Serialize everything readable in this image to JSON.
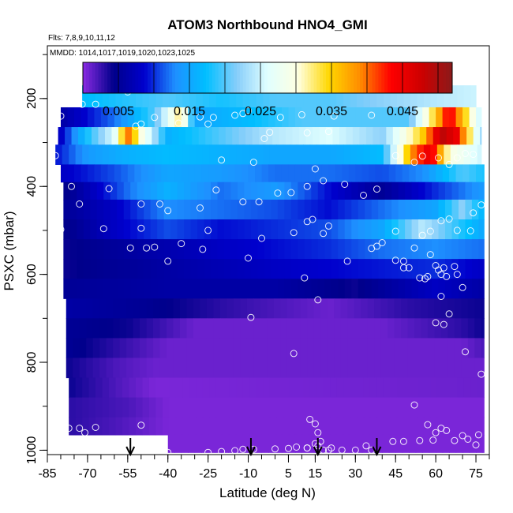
{
  "chart_data": {
    "type": "heatmap",
    "title": "ATOM3 Northbound HNO4_GMI",
    "subtitle_flights": "Flts: 7,8,9,10,11,12",
    "subtitle_dates": "MMDD: 1014,1017,1019,1020,1023,1025",
    "xlabel": "Latitude (deg N)",
    "ylabel": "PSXC (mbar)",
    "xlim": [
      -85,
      80
    ],
    "ylim": [
      1010,
      80
    ],
    "x_ticks": [
      -85,
      -70,
      -55,
      -40,
      -25,
      -10,
      5,
      15,
      30,
      45,
      60,
      75
    ],
    "y_ticks": [
      200,
      400,
      600,
      800,
      1000
    ],
    "colorbar": {
      "range": [
        0.0,
        0.052
      ],
      "tick_values": [
        0.005,
        0.015,
        0.025,
        0.035,
        0.045
      ],
      "tick_labels": [
        "0.005",
        "0.015",
        "0.025",
        "0.035",
        "0.045"
      ],
      "colors": [
        "#8a2be2",
        "#00008b",
        "#0000cd",
        "#1e90ff",
        "#00bfff",
        "#87cefa",
        "#e0ffff",
        "#ffffe0",
        "#ffd700",
        "#ff8c00",
        "#ff0000",
        "#cd0000",
        "#8b1a1a"
      ]
    },
    "flight_markers_latitude": [
      -54,
      -9,
      16,
      38
    ],
    "pressure_levels": [
      {
        "p_top": 170,
        "p_bot": 220,
        "lat_min": -72,
        "lat_max": 75,
        "profile": [
          [
            -72,
            0.017
          ],
          [
            -40,
            0.02
          ],
          [
            -20,
            0.018
          ],
          [
            0,
            0.02
          ],
          [
            20,
            0.02
          ],
          [
            40,
            0.022
          ],
          [
            60,
            0.024
          ],
          [
            75,
            0.025
          ]
        ]
      },
      {
        "p_top": 220,
        "p_bot": 265,
        "lat_min": -80,
        "lat_max": 77,
        "profile": [
          [
            -80,
            0.006
          ],
          [
            -60,
            0.012
          ],
          [
            -45,
            0.02
          ],
          [
            -35,
            0.033
          ],
          [
            -30,
            0.015
          ],
          [
            -10,
            0.017
          ],
          [
            10,
            0.02
          ],
          [
            30,
            0.02
          ],
          [
            50,
            0.02
          ],
          [
            60,
            0.035
          ],
          [
            65,
            0.045
          ],
          [
            77,
            0.024
          ]
        ]
      },
      {
        "p_top": 265,
        "p_bot": 305,
        "lat_min": -81,
        "lat_max": 77,
        "profile": [
          [
            -81,
            0.007
          ],
          [
            -70,
            0.018
          ],
          [
            -60,
            0.026
          ],
          [
            -55,
            0.04
          ],
          [
            -50,
            0.03
          ],
          [
            -40,
            0.016
          ],
          [
            -20,
            0.02
          ],
          [
            0,
            0.024
          ],
          [
            20,
            0.026
          ],
          [
            40,
            0.022
          ],
          [
            55,
            0.035
          ],
          [
            62,
            0.049
          ],
          [
            68,
            0.045
          ],
          [
            77,
            0.022
          ]
        ]
      },
      {
        "p_top": 305,
        "p_bot": 350,
        "lat_min": -82,
        "lat_max": 77,
        "profile": [
          [
            -82,
            0.009
          ],
          [
            -70,
            0.014
          ],
          [
            -55,
            0.016
          ],
          [
            -40,
            0.017
          ],
          [
            -20,
            0.016
          ],
          [
            0,
            0.015
          ],
          [
            20,
            0.015
          ],
          [
            40,
            0.017
          ],
          [
            52,
            0.04
          ],
          [
            58,
            0.046
          ],
          [
            65,
            0.03
          ],
          [
            77,
            0.025
          ]
        ]
      },
      {
        "p_top": 350,
        "p_bot": 390,
        "lat_min": -80,
        "lat_max": 78,
        "profile": [
          [
            -80,
            0.008
          ],
          [
            -60,
            0.011
          ],
          [
            -40,
            0.015
          ],
          [
            -20,
            0.014
          ],
          [
            0,
            0.012
          ],
          [
            20,
            0.012
          ],
          [
            40,
            0.011
          ],
          [
            55,
            0.013
          ],
          [
            70,
            0.02
          ],
          [
            78,
            0.018
          ]
        ]
      },
      {
        "p_top": 390,
        "p_bot": 430,
        "lat_min": -79,
        "lat_max": 78,
        "profile": [
          [
            -79,
            0.004
          ],
          [
            -55,
            0.012
          ],
          [
            -40,
            0.016
          ],
          [
            -20,
            0.012
          ],
          [
            0,
            0.014
          ],
          [
            20,
            0.009
          ],
          [
            40,
            0.005
          ],
          [
            60,
            0.01
          ],
          [
            78,
            0.014
          ]
        ]
      },
      {
        "p_top": 430,
        "p_bot": 475,
        "lat_min": -79,
        "lat_max": 78,
        "profile": [
          [
            -79,
            0.005
          ],
          [
            -60,
            0.008
          ],
          [
            -40,
            0.013
          ],
          [
            -20,
            0.012
          ],
          [
            0,
            0.011
          ],
          [
            20,
            0.009
          ],
          [
            40,
            0.012
          ],
          [
            60,
            0.015
          ],
          [
            70,
            0.022
          ],
          [
            78,
            0.016
          ]
        ]
      },
      {
        "p_top": 475,
        "p_bot": 520,
        "lat_min": -79,
        "lat_max": 78,
        "profile": [
          [
            -79,
            0.004
          ],
          [
            -60,
            0.008
          ],
          [
            -40,
            0.011
          ],
          [
            -20,
            0.009
          ],
          [
            0,
            0.01
          ],
          [
            20,
            0.011
          ],
          [
            40,
            0.015
          ],
          [
            55,
            0.024
          ],
          [
            65,
            0.02
          ],
          [
            78,
            0.015
          ]
        ]
      },
      {
        "p_top": 520,
        "p_bot": 565,
        "lat_min": -79,
        "lat_max": 78,
        "profile": [
          [
            -79,
            0.004
          ],
          [
            -50,
            0.006
          ],
          [
            -20,
            0.008
          ],
          [
            0,
            0.009
          ],
          [
            20,
            0.01
          ],
          [
            40,
            0.012
          ],
          [
            60,
            0.013
          ],
          [
            78,
            0.012
          ]
        ]
      },
      {
        "p_top": 565,
        "p_bot": 610,
        "lat_min": -79,
        "lat_max": 78,
        "profile": [
          [
            -79,
            0.004
          ],
          [
            -40,
            0.006
          ],
          [
            0,
            0.008
          ],
          [
            30,
            0.009
          ],
          [
            60,
            0.01
          ],
          [
            78,
            0.008
          ]
        ]
      },
      {
        "p_top": 610,
        "p_bot": 655,
        "lat_min": -79,
        "lat_max": 78,
        "profile": [
          [
            -79,
            0.005
          ],
          [
            -40,
            0.006
          ],
          [
            0,
            0.006
          ],
          [
            30,
            0.004
          ],
          [
            60,
            0.008
          ],
          [
            78,
            0.006
          ]
        ]
      },
      {
        "p_top": 655,
        "p_bot": 700,
        "lat_min": -78,
        "lat_max": 78,
        "profile": [
          [
            -78,
            0.006
          ],
          [
            -50,
            0.005
          ],
          [
            -20,
            0.003
          ],
          [
            20,
            0.001
          ],
          [
            50,
            0.003
          ],
          [
            78,
            0.004
          ]
        ]
      },
      {
        "p_top": 700,
        "p_bot": 745,
        "lat_min": -78,
        "lat_max": 78,
        "profile": [
          [
            -78,
            0.005
          ],
          [
            -55,
            0.004
          ],
          [
            -30,
            0.001
          ],
          [
            40,
            0.001
          ],
          [
            70,
            0.003
          ],
          [
            78,
            0.004
          ]
        ]
      },
      {
        "p_top": 745,
        "p_bot": 790,
        "lat_min": -78,
        "lat_max": 78,
        "profile": [
          [
            -78,
            0.005
          ],
          [
            -60,
            0.003
          ],
          [
            -40,
            0.001
          ],
          [
            70,
            0.001
          ],
          [
            78,
            0.002
          ]
        ]
      },
      {
        "p_top": 790,
        "p_bot": 835,
        "lat_min": -78,
        "lat_max": 78,
        "profile": [
          [
            -78,
            0.004
          ],
          [
            -60,
            0.002
          ],
          [
            -45,
            0.001
          ],
          [
            78,
            0.001
          ]
        ]
      },
      {
        "p_top": 835,
        "p_bot": 880,
        "lat_min": -77,
        "lat_max": 78,
        "profile": [
          [
            -77,
            0.004
          ],
          [
            -60,
            0.002
          ],
          [
            -45,
            0.0005
          ],
          [
            78,
            0.001
          ]
        ]
      },
      {
        "p_top": 880,
        "p_bot": 925,
        "lat_min": -77,
        "lat_max": 78,
        "profile": [
          [
            -77,
            0.003
          ],
          [
            -55,
            0.002
          ],
          [
            -40,
            0.0005
          ],
          [
            78,
            0.0005
          ]
        ]
      },
      {
        "p_top": 925,
        "p_bot": 965,
        "lat_min": -77,
        "lat_max": 78,
        "profile": [
          [
            -77,
            0.003
          ],
          [
            -60,
            0.002
          ],
          [
            -40,
            0.0005
          ],
          [
            78,
            0.0005
          ]
        ]
      },
      {
        "p_top": 965,
        "p_bot": 1005,
        "lat_min": -40,
        "lat_max": 78,
        "profile": [
          [
            -40,
            0.0005
          ],
          [
            78,
            0.0005
          ]
        ]
      }
    ],
    "sample_points": [
      [
        -55,
        185
      ],
      [
        -72,
        213
      ],
      [
        -67,
        213
      ],
      [
        -80,
        240
      ],
      [
        -45,
        243
      ],
      [
        -28,
        242
      ],
      [
        -23,
        243
      ],
      [
        -15,
        238
      ],
      [
        -12,
        234
      ],
      [
        -10,
        228
      ],
      [
        2,
        243
      ],
      [
        10,
        237
      ],
      [
        22,
        240
      ],
      [
        36,
        238
      ],
      [
        -36,
        256
      ],
      [
        -25,
        258
      ],
      [
        -50,
        258
      ],
      [
        -52,
        263
      ],
      [
        -2,
        277
      ],
      [
        12,
        278
      ],
      [
        20,
        275
      ],
      [
        -4,
        291
      ],
      [
        -8,
        345
      ],
      [
        -20,
        340
      ],
      [
        -82,
        330
      ],
      [
        -76,
        400
      ],
      [
        -73,
        440
      ],
      [
        -80,
        498
      ],
      [
        -64,
        496
      ],
      [
        -62,
        405
      ],
      [
        -50,
        440
      ],
      [
        -43,
        440
      ],
      [
        -40,
        455
      ],
      [
        -28,
        449
      ],
      [
        -22,
        408
      ],
      [
        -12,
        435
      ],
      [
        -6,
        435
      ],
      [
        1,
        415
      ],
      [
        6,
        414
      ],
      [
        12,
        400
      ],
      [
        15,
        360
      ],
      [
        18,
        387
      ],
      [
        26,
        395
      ],
      [
        33,
        420
      ],
      [
        38,
        406
      ],
      [
        45,
        330
      ],
      [
        52,
        345
      ],
      [
        55,
        331
      ],
      [
        61,
        335
      ],
      [
        65,
        350
      ],
      [
        68,
        335
      ],
      [
        71,
        325
      ],
      [
        74,
        327
      ],
      [
        77,
        442
      ],
      [
        74,
        460
      ],
      [
        65,
        474
      ],
      [
        62,
        478
      ],
      [
        68,
        500
      ],
      [
        73,
        501
      ],
      [
        58,
        502
      ],
      [
        55,
        511
      ],
      [
        52,
        540
      ],
      [
        48,
        570
      ],
      [
        45,
        502
      ],
      [
        40,
        528
      ],
      [
        38,
        536
      ],
      [
        20,
        490
      ],
      [
        18,
        507
      ],
      [
        14,
        475
      ],
      [
        12,
        480
      ],
      [
        7,
        505
      ],
      [
        -5,
        518
      ],
      [
        -10,
        563
      ],
      [
        -25,
        500
      ],
      [
        -27,
        543
      ],
      [
        -35,
        530
      ],
      [
        -40,
        570
      ],
      [
        -45,
        538
      ],
      [
        -48,
        540
      ],
      [
        -54,
        540
      ],
      [
        -50,
        495
      ],
      [
        11,
        608
      ],
      [
        27,
        570
      ],
      [
        36,
        541
      ],
      [
        45,
        568
      ],
      [
        48,
        585
      ],
      [
        50,
        585
      ],
      [
        54,
        608
      ],
      [
        57,
        605
      ],
      [
        60,
        580
      ],
      [
        63,
        585
      ],
      [
        67,
        582
      ],
      [
        58,
        555
      ],
      [
        61,
        590
      ],
      [
        62,
        600
      ],
      [
        64,
        605
      ],
      [
        56,
        610
      ],
      [
        68,
        600
      ],
      [
        70,
        630
      ],
      [
        62,
        650
      ],
      [
        65,
        690
      ],
      [
        60,
        710
      ],
      [
        63,
        714
      ],
      [
        71,
        776
      ],
      [
        77,
        827
      ],
      [
        16,
        658
      ],
      [
        -9,
        698
      ],
      [
        7,
        780
      ],
      [
        -50,
        943
      ],
      [
        -67,
        948
      ],
      [
        -73,
        950
      ],
      [
        -71,
        960
      ],
      [
        -77,
        950
      ],
      [
        60,
        960
      ],
      [
        62,
        950
      ],
      [
        52,
        897
      ],
      [
        57,
        942
      ],
      [
        64,
        955
      ],
      [
        70,
        967
      ],
      [
        72,
        975
      ],
      [
        76,
        965
      ],
      [
        75,
        988
      ],
      [
        25,
        1000
      ],
      [
        30,
        1000
      ],
      [
        34,
        990
      ],
      [
        36,
        1000
      ],
      [
        44,
        980
      ],
      [
        48,
        980
      ],
      [
        54,
        978
      ],
      [
        59,
        977
      ],
      [
        67,
        978
      ],
      [
        -40,
        1005
      ],
      [
        -25,
        1005
      ],
      [
        -20,
        1003
      ],
      [
        -15,
        1001
      ],
      [
        -12,
        998
      ],
      [
        -8,
        998
      ],
      [
        0,
        997
      ],
      [
        5,
        996
      ],
      [
        8,
        993
      ],
      [
        12,
        995
      ],
      [
        15,
        985
      ],
      [
        16,
        990
      ],
      [
        17,
        980
      ],
      [
        18,
        1000
      ],
      [
        20,
        1000
      ],
      [
        21,
        995
      ],
      [
        13,
        930
      ],
      [
        12,
        995
      ],
      [
        15,
        940
      ],
      [
        16,
        960
      ]
    ]
  }
}
